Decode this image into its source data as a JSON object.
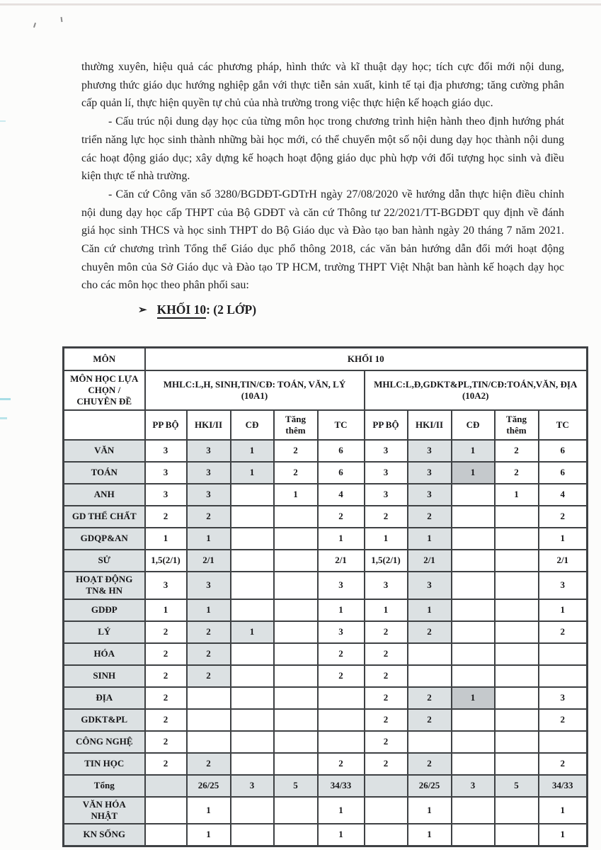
{
  "document": {
    "paragraphs": [
      {
        "text": "thường xuyên, hiệu quả các phương pháp, hình thức và kĩ thuật dạy học; tích cực đổi mới nội dung, phương thức giáo dục hướng nghiệp gắn với thực tiễn sản xuất, kinh tế tại địa phương; tăng cường phân cấp quản lí, thực hiện quyền tự chủ của nhà trường trong việc thực hiện kế hoạch giáo dục."
      },
      {
        "text": "- Cấu trúc nội dung dạy học của từng môn học trong chương trình hiện hành theo định hướng phát triển năng lực học sinh thành những bài học mới, có thể chuyển một số nội dung dạy học thành nội dung các hoạt động giáo dục; xây dựng kế hoạch hoạt động giáo dục phù hợp với đối tượng học sinh và điều kiện thực tế nhà trường."
      },
      {
        "text": "- Căn cứ Công văn số 3280/BGDĐT-GDTrH ngày 27/08/2020 về hướng dẫn thực hiện điều chỉnh nội dung dạy học cấp THPT của Bộ GDĐT và căn cứ Thông tư 22/2021/TT-BGDĐT quy định về đánh giá học sinh THCS và học sinh THPT do Bộ Giáo dục và Đào tạo ban hành ngày 20 tháng 7 năm 2021. Căn cứ chương trình Tổng thể Giáo dục phổ thông 2018, các văn bản hướng dẫn đổi mới hoạt động chuyên môn của Sở Giáo dục và Đào tạo TP HCM, trường THPT Việt Nhật ban hành kế hoạch dạy học cho các môn học theo phân phối sau:"
      }
    ],
    "heading": {
      "marker": "➢",
      "title": "KHỐI 10",
      "suffix": ": (2 LỚP)"
    }
  },
  "table": {
    "corner": "MÔN",
    "khoi_header": "KHỐI 10",
    "selection_label": "MÔN HỌC LỰA\nCHỌN /\nCHUYÊN ĐỀ",
    "groups": [
      {
        "name": "MHLC:L,H, SINH,TIN/CĐ: TOÁN, VĂN, LÝ",
        "class_name": "(10A1)"
      },
      {
        "name": "MHLC:L,Đ,GDKT&PL,TIN/CĐ:TOÁN,VĂN, ĐỊA",
        "class_name": "(10A2)"
      }
    ],
    "columns": [
      "PP BỘ",
      "HKI/II",
      "CĐ",
      "Tăng\nthêm",
      "TC"
    ],
    "rows": [
      {
        "label": "VĂN",
        "values": [
          "3",
          "3",
          "1",
          "2",
          "6",
          "3",
          "3",
          "1",
          "2",
          "6"
        ],
        "shade": [
          0,
          1,
          1,
          0,
          0,
          0,
          1,
          1,
          0,
          0
        ]
      },
      {
        "label": "TOÁN",
        "values": [
          "3",
          "3",
          "1",
          "2",
          "6",
          "3",
          "3",
          "1",
          "2",
          "6"
        ],
        "shade": [
          0,
          1,
          1,
          0,
          0,
          0,
          1,
          2,
          0,
          0
        ]
      },
      {
        "label": "ANH",
        "values": [
          "3",
          "3",
          "",
          "1",
          "4",
          "3",
          "3",
          "",
          "1",
          "4"
        ],
        "shade": [
          0,
          1,
          0,
          0,
          0,
          0,
          1,
          0,
          0,
          0
        ]
      },
      {
        "label": "GD THỂ CHẤT",
        "values": [
          "2",
          "2",
          "",
          "",
          "2",
          "2",
          "2",
          "",
          "",
          "2"
        ],
        "shade": [
          0,
          1,
          0,
          0,
          0,
          0,
          1,
          0,
          0,
          0
        ]
      },
      {
        "label": "GDQP&AN",
        "values": [
          "1",
          "1",
          "",
          "",
          "1",
          "1",
          "1",
          "",
          "",
          "1"
        ],
        "shade": [
          0,
          1,
          0,
          0,
          0,
          0,
          1,
          0,
          0,
          0
        ]
      },
      {
        "label": "SỬ",
        "values": [
          "1,5(2/1)",
          "2/1",
          "",
          "",
          "2/1",
          "1,5(2/1)",
          "2/1",
          "",
          "",
          "2/1"
        ],
        "shade": [
          0,
          1,
          0,
          0,
          0,
          0,
          1,
          0,
          0,
          0
        ]
      },
      {
        "label": "HOẠT ĐỘNG\nTN& HN",
        "values": [
          "3",
          "3",
          "",
          "",
          "3",
          "3",
          "3",
          "",
          "",
          "3"
        ],
        "shade": [
          0,
          1,
          0,
          0,
          0,
          0,
          1,
          0,
          0,
          0
        ]
      },
      {
        "label": "GDĐP",
        "values": [
          "1",
          "1",
          "",
          "",
          "1",
          "1",
          "1",
          "",
          "",
          "1"
        ],
        "shade": [
          0,
          1,
          0,
          0,
          0,
          0,
          1,
          0,
          0,
          0
        ]
      },
      {
        "label": "LÝ",
        "values": [
          "2",
          "2",
          "1",
          "",
          "3",
          "2",
          "2",
          "",
          "",
          "2"
        ],
        "shade": [
          0,
          1,
          1,
          0,
          0,
          0,
          1,
          0,
          0,
          0
        ]
      },
      {
        "label": "HÓA",
        "values": [
          "2",
          "2",
          "",
          "",
          "2",
          "2",
          "",
          "",
          "",
          ""
        ],
        "shade": [
          0,
          1,
          0,
          0,
          0,
          0,
          0,
          0,
          0,
          0
        ]
      },
      {
        "label": "SINH",
        "values": [
          "2",
          "2",
          "",
          "",
          "2",
          "2",
          "",
          "",
          "",
          ""
        ],
        "shade": [
          0,
          1,
          0,
          0,
          0,
          0,
          0,
          0,
          0,
          0
        ]
      },
      {
        "label": "ĐỊA",
        "values": [
          "2",
          "",
          "",
          "",
          "",
          "2",
          "2",
          "1",
          "",
          "3"
        ],
        "shade": [
          0,
          0,
          0,
          0,
          0,
          0,
          1,
          2,
          0,
          0
        ]
      },
      {
        "label": "GDKT&PL",
        "values": [
          "2",
          "",
          "",
          "",
          "",
          "2",
          "2",
          "",
          "",
          "2"
        ],
        "shade": [
          0,
          0,
          0,
          0,
          0,
          0,
          1,
          0,
          0,
          0
        ]
      },
      {
        "label": "CÔNG NGHỆ",
        "values": [
          "2",
          "",
          "",
          "",
          "",
          "2",
          "",
          "",
          "",
          ""
        ],
        "shade": [
          0,
          0,
          0,
          0,
          0,
          0,
          0,
          0,
          0,
          0
        ]
      },
      {
        "label": "TIN HỌC",
        "values": [
          "2",
          "2",
          "",
          "",
          "2",
          "2",
          "2",
          "",
          "",
          "2"
        ],
        "shade": [
          0,
          1,
          0,
          0,
          0,
          0,
          1,
          0,
          0,
          0
        ]
      },
      {
        "label": "Tổng",
        "values": [
          "",
          "26/25",
          "3",
          "5",
          "34/33",
          "",
          "26/25",
          "3",
          "5",
          "34/33"
        ],
        "shade": [
          1,
          1,
          1,
          1,
          1,
          1,
          1,
          1,
          1,
          1
        ],
        "row_shaded": true
      },
      {
        "label": "VĂN HÓA\nNHẬT",
        "values": [
          "",
          "1",
          "",
          "",
          "1",
          "",
          "1",
          "",
          "",
          "1"
        ],
        "shade": [
          0,
          0,
          0,
          0,
          0,
          0,
          0,
          0,
          0,
          0
        ]
      },
      {
        "label": "KN SỐNG",
        "values": [
          "",
          "1",
          "",
          "",
          "1",
          "",
          "1",
          "",
          "",
          "1"
        ],
        "shade": [
          0,
          0,
          0,
          0,
          0,
          0,
          0,
          0,
          0,
          0
        ]
      }
    ]
  },
  "colors": {
    "cell_shade_light": "#dce1e3",
    "cell_shade_dark": "#c5c9cc",
    "table_border": "#3e4144",
    "scan_cyan": "#a8dde6"
  }
}
